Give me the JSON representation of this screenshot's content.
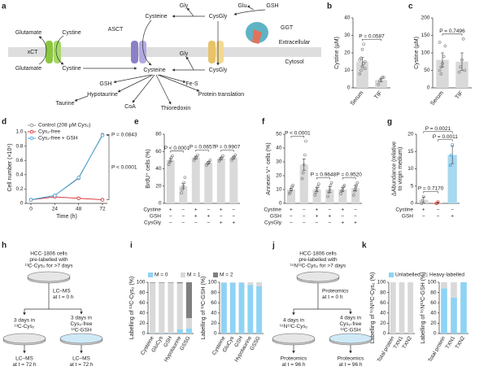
{
  "panels": [
    "a",
    "b",
    "c",
    "d",
    "e",
    "f",
    "g",
    "h",
    "i",
    "j",
    "k"
  ],
  "a": {
    "labels": [
      "Glutamate",
      "Cystine",
      "xCT",
      "Glutamate",
      "Cystine",
      "ASCT",
      "Cysteine",
      "Gly",
      "CysGly",
      "Glu",
      "GSH",
      "GGT",
      "Extracellular",
      "Cytosol",
      "Gly",
      "Cysteine",
      "CysGly",
      "GSH",
      "Fe-S",
      "Hypotaurine",
      "Protein translation",
      "Taurine",
      "CoA",
      "Thioredoxin"
    ]
  },
  "h": {
    "start": [
      "HCC-1806 cells",
      "pre-labelled with",
      "¹³C-Cys₂ for >7 days"
    ],
    "step": [
      "LC–MS",
      "at t = 0 h"
    ],
    "left": [
      "3 days in",
      "¹³C-Cys₂"
    ],
    "right": [
      "3 days in",
      "Cys₂-free",
      "¹²C-GSH"
    ],
    "end_left": [
      "LC–MS",
      "at t = 72 h"
    ],
    "end_right": [
      "LC–MS",
      "at t = 72 h"
    ]
  },
  "j": {
    "start": [
      "HCC-1806 cells",
      "pre-labelled with",
      "¹⁵N¹³C-Cys₂ for >7 days"
    ],
    "step": [
      "Proteomics",
      "at t = 0 h"
    ],
    "left": [
      "4 days in",
      "¹⁵N¹³C-Cys₂"
    ],
    "right": [
      "4 days in",
      "Cys₂-free",
      "¹²C-GSH"
    ],
    "end_left": [
      "Proteomics",
      "at t = 96 h"
    ],
    "end_right": [
      "Proteomics",
      "at t = 96 h"
    ]
  },
  "chart_data": [
    {
      "type": "bar",
      "ylabel": "Cystine (µM)",
      "categories": [
        "Serum",
        "TIF"
      ],
      "values": [
        15,
        4.5
      ],
      "errors": [
        2.5,
        1
      ],
      "color": "#d9d9d9",
      "point_color": "#777777",
      "points": [
        [
          8,
          10,
          12,
          14,
          15,
          16,
          17,
          22,
          25,
          11
        ],
        [
          2,
          4,
          5,
          6,
          6
        ]
      ],
      "ylim": [
        0,
        40
      ],
      "yticks": [
        0,
        10,
        20,
        30,
        40
      ],
      "comparisons": [
        {
          "text": "P = 0.0587",
          "pair": [
            0,
            1
          ]
        }
      ]
    },
    {
      "type": "bar",
      "ylabel": "Cystine (µM)",
      "categories": [
        "Serum",
        "TIF"
      ],
      "values": [
        80,
        75
      ],
      "errors": [
        20,
        25
      ],
      "color": "#d9d9d9",
      "point_color": "#777777",
      "points": [
        [
          50,
          60,
          70,
          90,
          120,
          130,
          40
        ],
        [
          45,
          60,
          80,
          140,
          50
        ]
      ],
      "ylim": [
        0,
        200
      ],
      "yticks": [
        0,
        50,
        100,
        150,
        200
      ],
      "comparisons": [
        {
          "text": "P = 0.7496",
          "pair": [
            0,
            1
          ]
        }
      ]
    },
    {
      "type": "line",
      "ylabel": "Cell number (×10⁶)",
      "xlabel": "Time (h)",
      "x": [
        0,
        24,
        48,
        72
      ],
      "xlim": [
        0,
        72
      ],
      "xticks": [
        0,
        24,
        48,
        72
      ],
      "ylim": [
        0,
        1
      ],
      "yticks": [
        0,
        0.2,
        0.4,
        0.6,
        0.8,
        {
          "value": 1,
          "label": "1.0"
        }
      ],
      "series": [
        {
          "name": "Control (208 µM Cys₂)",
          "color": "#8c8c8c",
          "values": [
            0.05,
            0.11,
            0.35,
            0.96
          ]
        },
        {
          "name": "Cys₂-free",
          "color": "#d62728",
          "values": [
            0.05,
            0.09,
            0.07,
            0.05
          ]
        },
        {
          "name": "Cys₂-free + GSH",
          "color": "#3aa0d8",
          "values": [
            0.05,
            0.11,
            0.36,
            0.95
          ]
        }
      ],
      "annotations": [
        {
          "text": "P = 0.0843",
          "series": [
            0,
            2
          ]
        },
        {
          "text": "P < 0.0001",
          "series": [
            0,
            1
          ]
        }
      ]
    },
    {
      "type": "bar",
      "ylabel": "BrdU⁺ cells (%)",
      "values": [
        50,
        20,
        53,
        47,
        52,
        53
      ],
      "errors": [
        2,
        3,
        1.5,
        1.5,
        1.5,
        1.5
      ],
      "color": "#d9d9d9",
      "point_color": "#777777",
      "points": [
        [
          45,
          48,
          50,
          53,
          55
        ],
        [
          12,
          16,
          20,
          24,
          30
        ],
        [
          50,
          52,
          53,
          54,
          56
        ],
        [
          44,
          46,
          47,
          48,
          50
        ],
        [
          49,
          51,
          52,
          53,
          55
        ],
        [
          50,
          52,
          53,
          54,
          56
        ]
      ],
      "ylim": [
        0,
        80
      ],
      "yticks": [
        0,
        20,
        40,
        60,
        80
      ],
      "comparisons": [
        {
          "text": "P < 0.0001",
          "pair": [
            0,
            1
          ]
        },
        {
          "text": "P = 0.0657",
          "pair": [
            2,
            3
          ]
        },
        {
          "text": "P = 0.9907",
          "pair": [
            4,
            5
          ]
        }
      ],
      "conditions": [
        {
          "name": "Cystine",
          "marks": [
            "+",
            "−",
            "+",
            "−",
            "+",
            "−"
          ]
        },
        {
          "name": "GSH",
          "marks": [
            "−",
            "−",
            "+",
            "+",
            "−",
            "−"
          ]
        },
        {
          "name": "CysGly",
          "marks": [
            "−",
            "−",
            "−",
            "−",
            "+",
            "+"
          ]
        }
      ]
    },
    {
      "type": "bar",
      "ylabel": "Annexin V⁺ cells (%)",
      "values": [
        10,
        28,
        10,
        10,
        10,
        11
      ],
      "errors": [
        1,
        4,
        1.5,
        2,
        1.5,
        2
      ],
      "color": "#d9d9d9",
      "point_color": "#777777",
      "points": [
        [
          7,
          8,
          10,
          12,
          13
        ],
        [
          18,
          22,
          28,
          35,
          45
        ],
        [
          6,
          8,
          10,
          12,
          14
        ],
        [
          5,
          8,
          10,
          13,
          15
        ],
        [
          7,
          9,
          10,
          12,
          13
        ],
        [
          6,
          9,
          11,
          13,
          15
        ]
      ],
      "ylim": [
        0,
        50
      ],
      "yticks": [
        0,
        10,
        20,
        30,
        40,
        50
      ],
      "comparisons": [
        {
          "text": "P < 0.0001",
          "pair": [
            0,
            1
          ]
        },
        {
          "text": "P = 0.9648",
          "pair": [
            2,
            3
          ]
        },
        {
          "text": "P = 0.9520",
          "pair": [
            4,
            5
          ]
        }
      ],
      "conditions": [
        {
          "name": "Cystine",
          "marks": [
            "+",
            "−",
            "+",
            "−",
            "+",
            "−"
          ]
        },
        {
          "name": "GSH",
          "marks": [
            "−",
            "−",
            "+",
            "+",
            "−",
            "−"
          ]
        },
        {
          "name": "CysGly",
          "marks": [
            "−",
            "−",
            "−",
            "−",
            "+",
            "+"
          ]
        }
      ]
    },
    {
      "type": "bar",
      "ylabel": [
        "ΔAbundance (relative",
        "to virgin medium)"
      ],
      "values": [
        1,
        0.2,
        14
      ],
      "errors": [
        0.8,
        0.2,
        2.5
      ],
      "colors": [
        "#d9d9d9",
        "#f4c7c3",
        "#a8d8f0"
      ],
      "point_colors": [
        "#777777",
        "#d62728",
        "#2f8fd0"
      ],
      "points": [
        [
          0,
          1,
          2
        ],
        [
          0,
          0,
          0.5
        ],
        [
          11,
          14,
          17
        ]
      ],
      "ylim": [
        0,
        20
      ],
      "yticks": [
        0,
        5,
        10,
        15,
        20
      ],
      "comparisons": [
        {
          "text": "P = 0.7170",
          "pair": [
            0,
            1
          ]
        },
        {
          "text": "P = 0.0011",
          "pair": [
            1,
            2
          ]
        },
        {
          "text": "P = 0.0021",
          "pair": [
            0,
            2
          ]
        }
      ],
      "conditions": [
        {
          "name": "Cystine",
          "marks": [
            "+",
            "−",
            "−"
          ]
        },
        {
          "name": "GSH",
          "marks": [
            "−",
            "−",
            "+"
          ]
        }
      ]
    },
    {
      "type": "stacked-bar",
      "categories": [
        "Cysteine",
        "GluCys",
        "GSH",
        "Hypotaurine",
        "GSSG"
      ],
      "series": [
        {
          "name": "M = 0",
          "color": "#8fd3f4"
        },
        {
          "name": "M = 1",
          "color": "#d9d9d9"
        },
        {
          "name": "M = 2",
          "color": "#7f7f7f"
        }
      ],
      "ylim": [
        0,
        100
      ],
      "yticks": [
        0,
        20,
        40,
        60,
        80,
        100
      ],
      "groups": [
        {
          "ylabel": "Labelling of ¹³C-Cys₂ (%)",
          "values": [
            [
              1,
              1,
              1,
              8,
              10
            ],
            [
              98,
              98,
              98,
              90,
              20
            ],
            [
              1,
              1,
              1,
              2,
              70
            ]
          ]
        },
        {
          "ylabel": "Labelling of ¹³C-GSH (%)",
          "values": [
            [
              99,
              99,
              99,
              95,
              92
            ],
            [
              1,
              1,
              1,
              5,
              8
            ],
            [
              0,
              0,
              0,
              0,
              0
            ]
          ]
        }
      ]
    },
    {
      "type": "stacked-bar",
      "categories": [
        "Total protein",
        "TXN1",
        "TXN2"
      ],
      "series": [
        {
          "name": "Unlabelled",
          "color": "#8fd3f4"
        },
        {
          "name": "Heavy-labelled",
          "color": "#d9d9d9"
        }
      ],
      "ylim": [
        0,
        100
      ],
      "yticks": [
        0,
        20,
        40,
        60,
        80,
        100
      ],
      "groups": [
        {
          "ylabel": "Labelling of ¹⁵N¹³C-Cys₂ (%)",
          "values": [
            [
              0,
              0,
              0
            ],
            [
              100,
              100,
              100
            ]
          ]
        },
        {
          "ylabel": "Labelling of ¹⁵N¹³C-GSH (%)",
          "values": [
            [
              88,
              70,
              100
            ],
            [
              12,
              30,
              0
            ]
          ]
        }
      ]
    }
  ]
}
